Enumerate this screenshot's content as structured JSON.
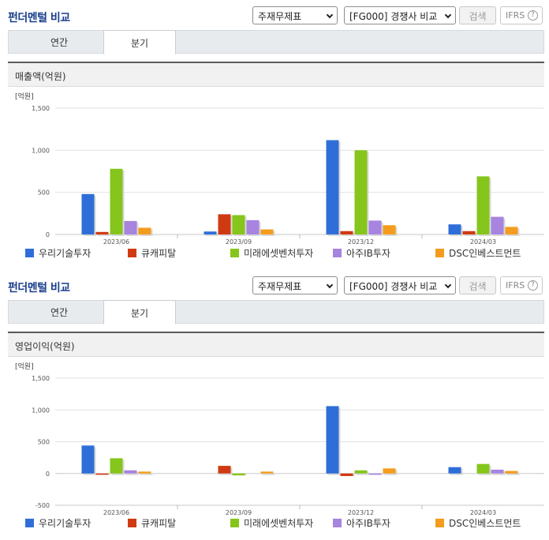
{
  "header": {
    "title": "펀더멘털 비교",
    "select_statement": "주재무제표",
    "select_peer": "[FG000] 경쟁사 비교",
    "search_label": "검색",
    "ifrs_label": "IFRS",
    "help_glyph": "?"
  },
  "tabs": [
    {
      "label": "연간",
      "active": false
    },
    {
      "label": "분기",
      "active": true
    }
  ],
  "colors": {
    "series": [
      "#2f6ed8",
      "#d03a12",
      "#86c51c",
      "#a784df",
      "#f49c1d"
    ]
  },
  "chart_data": [
    {
      "type": "bar",
      "title": "매출액(억원)",
      "ylabel": "[억원]",
      "ylim": [
        0,
        1500
      ],
      "yticks": [
        "1,500",
        "1,000",
        "500",
        "0"
      ],
      "ytick_values": [
        1500,
        1000,
        500,
        0
      ],
      "categories": [
        "2023/06",
        "2023/09",
        "2023/12",
        "2024/03"
      ],
      "grid": true,
      "legend": "bottom",
      "series": [
        {
          "name": "우리기술투자",
          "values": [
            480,
            35,
            1120,
            120
          ]
        },
        {
          "name": "큐캐피탈",
          "values": [
            30,
            240,
            40,
            40
          ]
        },
        {
          "name": "미래에셋벤처투자",
          "values": [
            780,
            230,
            1000,
            690
          ]
        },
        {
          "name": "아주IB투자",
          "values": [
            160,
            170,
            165,
            210
          ]
        },
        {
          "name": "DSC인베스트먼트",
          "values": [
            80,
            60,
            110,
            90
          ]
        }
      ]
    },
    {
      "type": "bar",
      "title": "영업이익(억원)",
      "ylabel": "[억원]",
      "ylim": [
        -500,
        1500
      ],
      "yticks": [
        "1,500",
        "1,000",
        "500",
        "0",
        "-500"
      ],
      "ytick_values": [
        1500,
        1000,
        500,
        0,
        -500
      ],
      "categories": [
        "2023/06",
        "2023/09",
        "2023/12",
        "2024/03"
      ],
      "grid": true,
      "legend": "bottom",
      "series": [
        {
          "name": "우리기술투자",
          "values": [
            440,
            0,
            1060,
            100
          ]
        },
        {
          "name": "큐캐피탈",
          "values": [
            -20,
            120,
            -40,
            0
          ]
        },
        {
          "name": "미래에셋벤처투자",
          "values": [
            240,
            -30,
            50,
            150
          ]
        },
        {
          "name": "아주IB투자",
          "values": [
            50,
            0,
            -20,
            60
          ]
        },
        {
          "name": "DSC인베스트먼트",
          "values": [
            30,
            30,
            80,
            40
          ]
        }
      ]
    }
  ]
}
